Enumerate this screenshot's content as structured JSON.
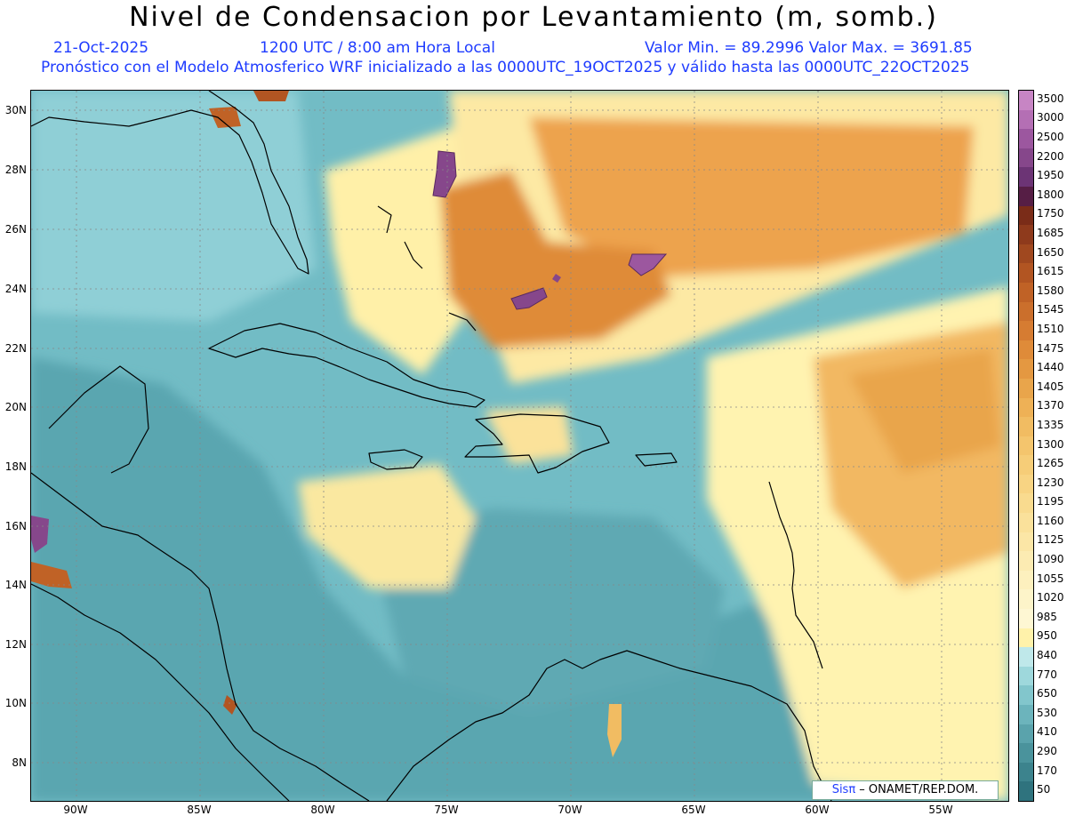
{
  "header": {
    "title": "Nivel de Condensacion por Levantamiento (m, somb.)",
    "date": "21-Oct-2025",
    "time": "1200 UTC / 8:00 am Hora Local",
    "min_max": "Valor Min. = 89.2996  Valor Max. = 3691.85",
    "model_line": "Pronóstico con el Modelo Atmosferico WRF inicializado a las 0000UTC_19OCT2025 y válido hasta las  0000UTC_22OCT2025"
  },
  "axes": {
    "lat_ticks": [
      "30N",
      "28N",
      "26N",
      "24N",
      "22N",
      "20N",
      "18N",
      "16N",
      "14N",
      "12N",
      "10N",
      "8N"
    ],
    "lon_ticks": [
      "90W",
      "85W",
      "80W",
      "75W",
      "70W",
      "65W",
      "60W",
      "55W"
    ]
  },
  "colorbar": {
    "labels": [
      "3500",
      "3000",
      "2500",
      "2200",
      "1950",
      "1800",
      "1750",
      "1685",
      "1650",
      "1615",
      "1580",
      "1545",
      "1510",
      "1475",
      "1440",
      "1405",
      "1370",
      "1335",
      "1300",
      "1265",
      "1230",
      "1195",
      "1160",
      "1125",
      "1090",
      "1055",
      "1020",
      "985",
      "950",
      "840",
      "770",
      "650",
      "530",
      "410",
      "290",
      "170",
      "50"
    ],
    "colors": [
      "#c785c4",
      "#b46fb4",
      "#9c579f",
      "#86478b",
      "#6c3475",
      "#561e45",
      "#7a2c18",
      "#8e3a1c",
      "#a0481f",
      "#b25522",
      "#c06226",
      "#cb6f2c",
      "#d67c32",
      "#df8b39",
      "#e49841",
      "#e9a54b",
      "#eeb156",
      "#f1bc62",
      "#f4c56d",
      "#f6cd78",
      "#f8d483",
      "#f9db8f",
      "#fae19b",
      "#fbe6a6",
      "#fcebb2",
      "#fdf0be",
      "#fdf4c9",
      "#fef7d3",
      "#fff2aa",
      "#bfe8ea",
      "#9ed8dc",
      "#82c6cc",
      "#6cb4bc",
      "#5aa3ac",
      "#4a939c",
      "#3c838d",
      "#2f737e"
    ]
  },
  "credit": {
    "sis": "Sisπ",
    "org": " – ONAMET/REP.DOM."
  }
}
